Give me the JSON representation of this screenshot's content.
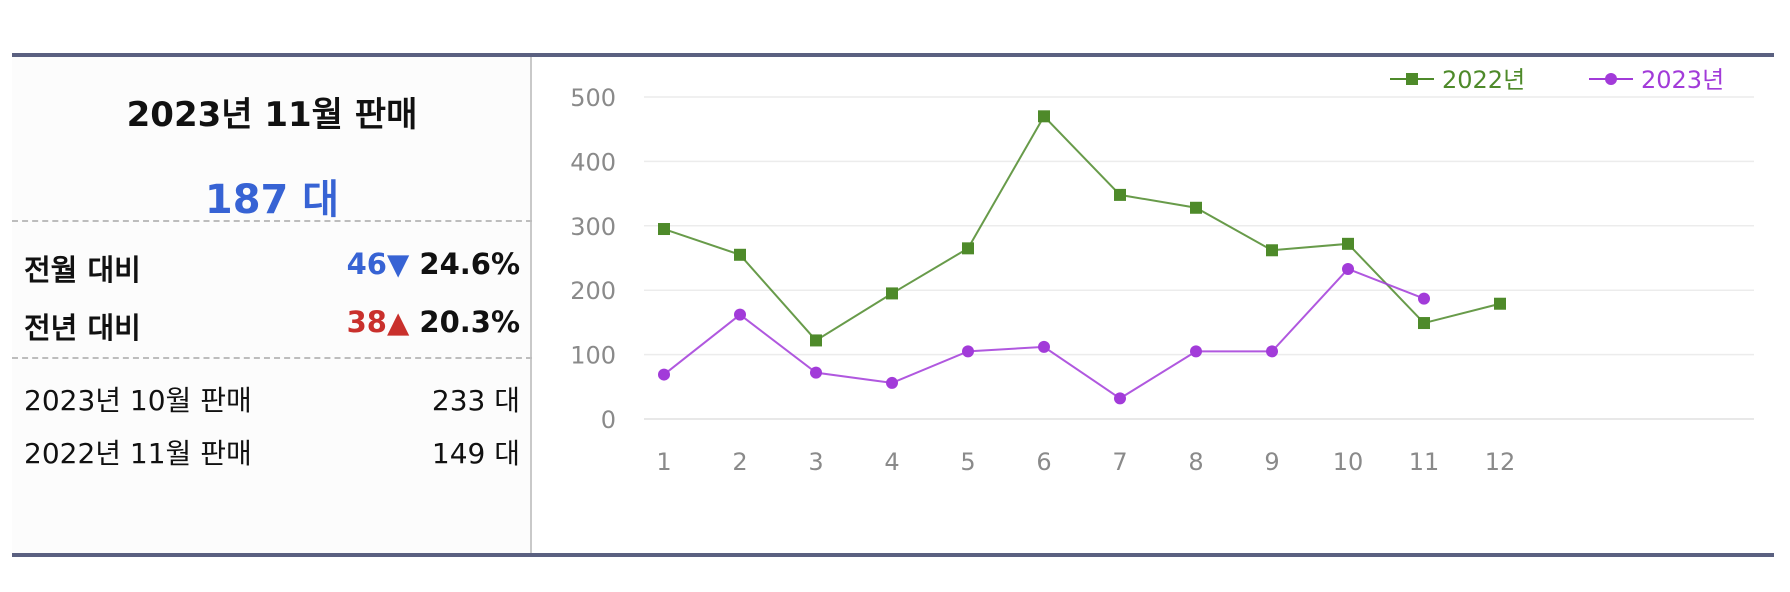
{
  "summary": {
    "title": "2023년 11월 판매",
    "total": "187 대",
    "mom": {
      "label": "전월 대비",
      "diff": "46",
      "arrow": "▼",
      "pct": "24.6%"
    },
    "yoy": {
      "label": "전년 대비",
      "diff": "38",
      "arrow": "▲",
      "pct": "20.3%"
    },
    "prev_month": {
      "label": "2023년 10월 판매",
      "value": "233 대"
    },
    "prev_year": {
      "label": "2022년 11월 판매",
      "value": "149 대"
    }
  },
  "colors": {
    "series_2022": "#4e8a2a",
    "series_2023": "#a23bd9",
    "down": "#3763d4",
    "up": "#c9302c"
  },
  "chart_data": {
    "type": "line",
    "x": [
      "1",
      "2",
      "3",
      "4",
      "5",
      "6",
      "7",
      "8",
      "9",
      "10",
      "11",
      "12"
    ],
    "ylim": [
      0,
      500
    ],
    "yticks": [
      "0",
      "100",
      "200",
      "300",
      "400",
      "500"
    ],
    "grid": true,
    "legend": "top-right",
    "series": [
      {
        "name": "2022년",
        "marker": "square",
        "values": [
          295,
          255,
          122,
          195,
          265,
          470,
          348,
          328,
          262,
          272,
          149,
          179
        ]
      },
      {
        "name": "2023년",
        "marker": "circle",
        "values": [
          69,
          162,
          72,
          56,
          105,
          112,
          32,
          105,
          105,
          233,
          187,
          null
        ]
      }
    ]
  }
}
